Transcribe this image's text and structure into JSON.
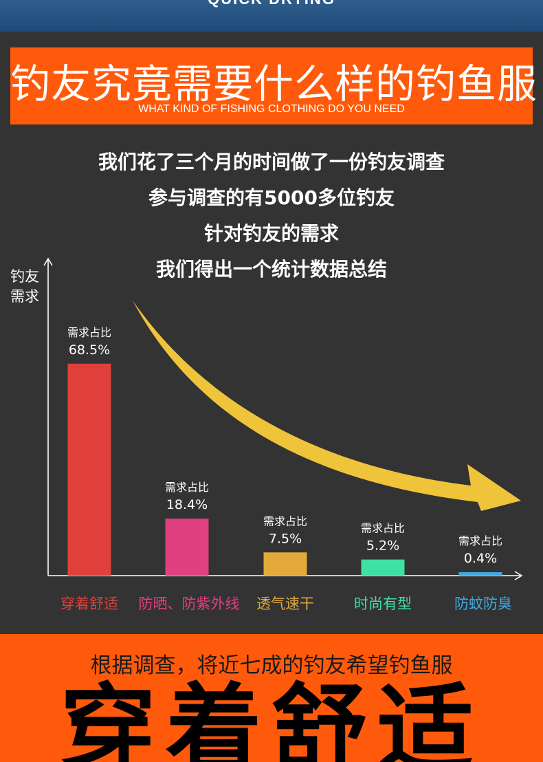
{
  "top_banner": {
    "text": "QUICK DRYING"
  },
  "header": {
    "title": "钓友究竟需要什么样的钓鱼服",
    "subtitle": "WHAT KIND OF FISHING CLOTHING DO YOU NEED"
  },
  "intro": {
    "line1": "我们花了三个月的时间做了一份钓友调查",
    "line2": "参与调查的有5000多位钓友",
    "line3": "针对钓友的需求",
    "line4": "我们得出一个统计数据总结"
  },
  "chart_data": {
    "type": "bar",
    "ylabel": "钓友需求",
    "categories": [
      "穿着舒适",
      "防晒、防紫外线",
      "透气速干",
      "时尚有型",
      "防蚊防臭"
    ],
    "values": [
      68.5,
      18.4,
      7.5,
      5.2,
      0.4
    ],
    "value_labels": [
      "68.5%",
      "18.4%",
      "7.5%",
      "5.2%",
      "0.4%"
    ],
    "data_label_prefix": "需求占比",
    "colors": [
      "#e0403c",
      "#e0407f",
      "#e3a93a",
      "#3fe0a3",
      "#3fa8e0"
    ],
    "trend_arrow_color": "#f0c43a",
    "ylim": [
      0,
      100
    ],
    "grid": false
  },
  "footer": {
    "line": "根据调查，将近七成的钓友希望钓鱼服",
    "big": "穿着舒适"
  }
}
